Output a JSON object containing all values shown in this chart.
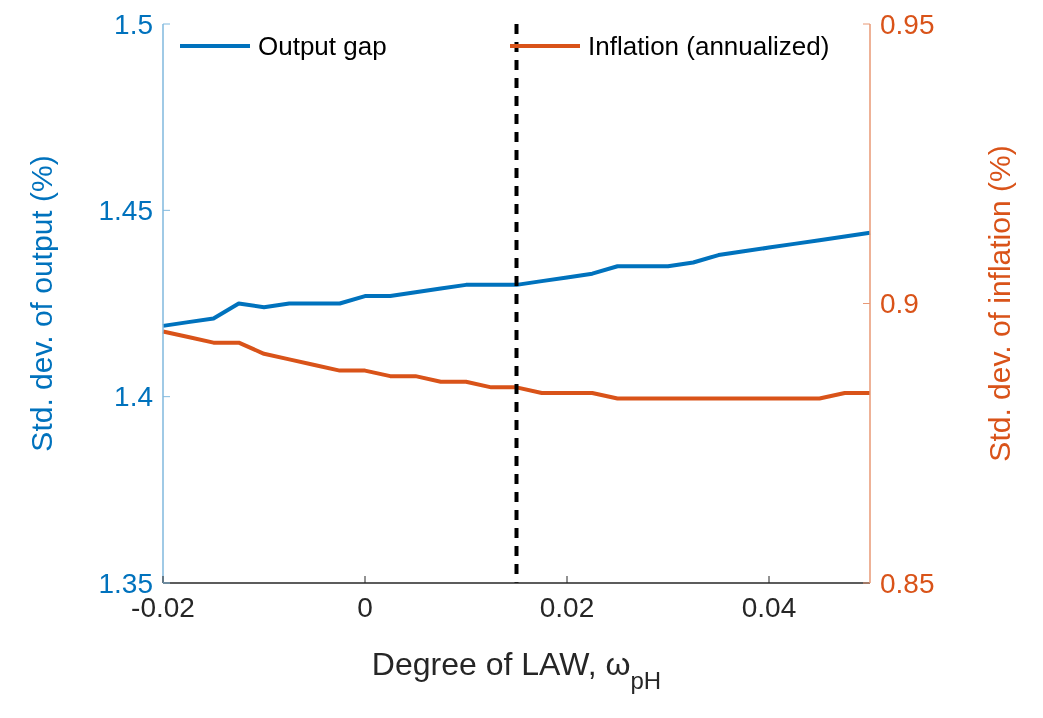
{
  "chart_data": {
    "type": "line",
    "xlabel": "Degree of LAW, ω$_{pH}$",
    "ylabel": "Std. dev. of output (%)",
    "y2label": "Std. dev. of inflation (%)",
    "x": [
      -0.02,
      -0.0175,
      -0.015,
      -0.0125,
      -0.01,
      -0.0075,
      -0.005,
      -0.0025,
      0,
      0.0025,
      0.005,
      0.0075,
      0.01,
      0.0125,
      0.015,
      0.0175,
      0.02,
      0.0225,
      0.025,
      0.0275,
      0.03,
      0.0325,
      0.035,
      0.0375,
      0.04,
      0.0425,
      0.045,
      0.0475,
      0.05
    ],
    "series": [
      {
        "name": "Output gap",
        "color": "#0072bd",
        "values": [
          1.419,
          1.42,
          1.421,
          1.425,
          1.424,
          1.425,
          1.425,
          1.425,
          1.427,
          1.427,
          1.428,
          1.429,
          1.43,
          1.43,
          1.43,
          1.431,
          1.432,
          1.433,
          1.435,
          1.435,
          1.435,
          1.436,
          1.438,
          1.439,
          1.44,
          1.441,
          1.442,
          1.443,
          1.444
        ]
      },
      {
        "name": "Inflation (annualized)",
        "color": "#d95319",
        "axis": "y2",
        "values": [
          0.895,
          0.894,
          0.893,
          0.893,
          0.891,
          0.89,
          0.889,
          0.888,
          0.888,
          0.887,
          0.887,
          0.886,
          0.886,
          0.885,
          0.885,
          0.884,
          0.884,
          0.884,
          0.883,
          0.883,
          0.883,
          0.883,
          0.883,
          0.883,
          0.883,
          0.883,
          0.883,
          0.884,
          0.884
        ]
      }
    ],
    "xlim": [
      -0.02,
      0.05
    ],
    "xticks": [
      -0.02,
      0,
      0.02,
      0.04
    ],
    "ylim": [
      1.35,
      1.5
    ],
    "yticks": [
      1.35,
      1.4,
      1.45,
      1.5
    ],
    "y2lim": [
      0.85,
      0.95
    ],
    "y2ticks": [
      0.85,
      0.9,
      0.95
    ],
    "ref_lines": [
      {
        "axis": "x",
        "value": 0.015,
        "color": "#000000",
        "line_style": "dashed"
      }
    ],
    "legend": "top",
    "grid": false,
    "line_style": "solid",
    "marker": "none"
  }
}
